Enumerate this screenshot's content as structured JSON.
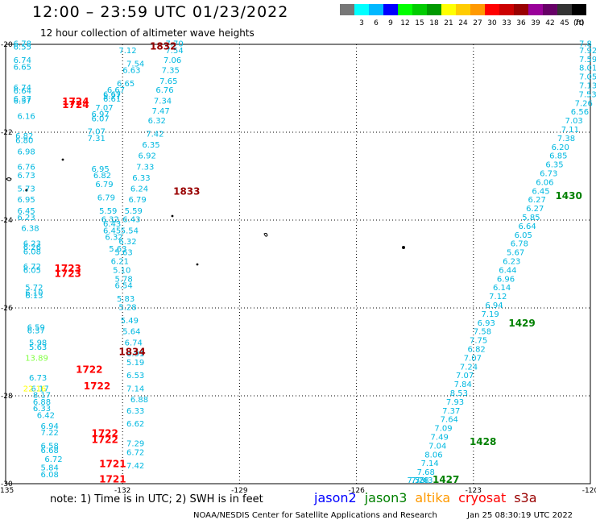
{
  "header": {
    "title": "12:00 – 23:59 UTC 01/23/2022",
    "subtitle": "12 hour collection of altimeter wave heights"
  },
  "legend": {
    "unit": "(ft)",
    "items": [
      {
        "color": "#777777",
        "label": ""
      },
      {
        "color": "#00ffff",
        "label": "3"
      },
      {
        "color": "#00b8ff",
        "label": "6"
      },
      {
        "color": "#0000ff",
        "label": "9"
      },
      {
        "color": "#00ff00",
        "label": "12"
      },
      {
        "color": "#00cc00",
        "label": "15"
      },
      {
        "color": "#009900",
        "label": "18"
      },
      {
        "color": "#ffff00",
        "label": "21"
      },
      {
        "color": "#ffcc00",
        "label": "24"
      },
      {
        "color": "#ff9900",
        "label": "27"
      },
      {
        "color": "#ff0000",
        "label": "30"
      },
      {
        "color": "#cc0000",
        "label": "33"
      },
      {
        "color": "#990000",
        "label": "36"
      },
      {
        "color": "#990099",
        "label": "39"
      },
      {
        "color": "#660066",
        "label": "42"
      },
      {
        "color": "#333333",
        "label": "45"
      },
      {
        "color": "#000000",
        "label": "70"
      }
    ]
  },
  "axes": {
    "lon_ticks": [
      "-135",
      "-132",
      "-129",
      "-126",
      "-123",
      "-120"
    ],
    "lat_ticks": [
      "-20",
      "-22",
      "-24",
      "-26",
      "-28",
      "-30"
    ],
    "lon_range": [
      -135,
      -120
    ],
    "lat_range": [
      -20,
      -30
    ]
  },
  "tracks": {
    "left": {
      "color": "#00b8e0",
      "points": [
        [
          -134.8,
          -20.05,
          "6.78"
        ],
        [
          -134.8,
          -20.12,
          "6.55"
        ],
        [
          -134.8,
          -20.42,
          "6.74"
        ],
        [
          -134.8,
          -20.58,
          "6.65"
        ],
        [
          -134.8,
          -21.05,
          "6.74"
        ],
        [
          -134.8,
          -21.12,
          "6.64"
        ],
        [
          -134.8,
          -21.3,
          "6.37"
        ],
        [
          -134.8,
          -21.35,
          "6.57"
        ],
        [
          -134.7,
          -21.7,
          "6.16"
        ],
        [
          -134.75,
          -22.15,
          "6.82"
        ],
        [
          -134.75,
          -22.25,
          "6.80"
        ],
        [
          -134.7,
          -22.5,
          "6.98"
        ],
        [
          -134.7,
          -22.85,
          "6.76"
        ],
        [
          -134.7,
          -23.05,
          "6.73"
        ],
        [
          -134.7,
          -23.35,
          "5.73"
        ],
        [
          -134.7,
          -23.6,
          "6.95"
        ],
        [
          -134.7,
          -23.85,
          "6.45"
        ],
        [
          -134.7,
          -24.0,
          "6.23"
        ],
        [
          -134.6,
          -24.25,
          "6.38"
        ],
        [
          -134.55,
          -24.6,
          "6.23"
        ],
        [
          -134.55,
          -24.68,
          "6.26"
        ],
        [
          -134.55,
          -24.78,
          "6.08"
        ],
        [
          -134.55,
          -25.12,
          "6.72"
        ],
        [
          -134.55,
          -25.2,
          "6.05"
        ],
        [
          -134.5,
          -25.6,
          "5.72"
        ],
        [
          -134.5,
          -25.72,
          "6.10"
        ],
        [
          -134.5,
          -25.78,
          "6.13"
        ],
        [
          -134.45,
          -26.5,
          "6.59"
        ],
        [
          -134.45,
          -26.58,
          "6.37"
        ],
        [
          -134.4,
          -26.85,
          "5.98"
        ],
        [
          -134.4,
          -26.95,
          "5.63"
        ],
        [
          -134.4,
          -27.65,
          "6.73"
        ],
        [
          -134.35,
          -27.9,
          "6.17"
        ],
        [
          -134.3,
          -28.2,
          "6.88"
        ],
        [
          -134.3,
          -28.35,
          "6.33"
        ],
        [
          -134.2,
          -28.5,
          "6.42"
        ],
        [
          -134.1,
          -28.75,
          "6.94"
        ],
        [
          -134.1,
          -28.9,
          "7.22"
        ],
        [
          -134.1,
          -29.2,
          "6.58"
        ],
        [
          -134.1,
          -29.3,
          "6.68"
        ],
        [
          -134.0,
          -29.5,
          "6.72"
        ],
        [
          -134.1,
          -29.7,
          "5.84"
        ],
        [
          -134.1,
          -29.85,
          "6.08"
        ]
      ]
    },
    "middle": {
      "color": "#00b8e0",
      "points": [
        [
          -132.1,
          -20.2,
          "7.12"
        ],
        [
          -131.9,
          -20.5,
          "7.54"
        ],
        [
          -132.0,
          -20.65,
          "6.63"
        ],
        [
          -132.15,
          -20.95,
          "6.65"
        ],
        [
          -132.4,
          -21.1,
          "6.67"
        ],
        [
          -132.5,
          -21.2,
          "6.67"
        ],
        [
          -132.5,
          -21.25,
          "5.77"
        ],
        [
          -132.5,
          -21.3,
          "6.61"
        ],
        [
          -132.7,
          -21.5,
          "7.07"
        ],
        [
          -132.8,
          -21.65,
          "6.97"
        ],
        [
          -132.8,
          -21.75,
          "6.07"
        ],
        [
          -132.9,
          -22.05,
          "7.07"
        ],
        [
          -132.9,
          -22.2,
          "7.31"
        ],
        [
          -132.8,
          -22.9,
          "6.95"
        ],
        [
          -132.75,
          -23.05,
          "6.82"
        ],
        [
          -132.7,
          -23.25,
          "6.79"
        ],
        [
          -132.65,
          -23.55,
          "6.79"
        ],
        [
          -132.6,
          -23.85,
          "5.59"
        ],
        [
          -132.55,
          -24.05,
          "6.32"
        ],
        [
          -132.5,
          -24.15,
          "6.43"
        ],
        [
          -132.5,
          -24.3,
          "6.45"
        ],
        [
          -132.45,
          -24.45,
          "6.32"
        ],
        [
          -132.35,
          -24.72,
          "5.63"
        ],
        [
          -132.3,
          -25.0,
          "6.21"
        ],
        [
          -132.25,
          -25.2,
          "5.10"
        ],
        [
          -132.2,
          -25.4,
          "5.78"
        ],
        [
          -132.2,
          -25.55,
          "6.54"
        ],
        [
          -132.15,
          -25.85,
          "5.83"
        ],
        [
          -132.1,
          -26.05,
          "5.28"
        ],
        [
          -132.05,
          -26.35,
          "5.49"
        ],
        [
          -132.0,
          -26.6,
          "5.64"
        ],
        [
          -131.95,
          -26.85,
          "6.74"
        ],
        [
          -131.9,
          -27.1,
          "6.91"
        ],
        [
          -131.9,
          -27.3,
          "5.19"
        ],
        [
          -131.9,
          -27.6,
          "6.53"
        ],
        [
          -131.9,
          -27.9,
          "7.14"
        ],
        [
          -131.8,
          -28.15,
          "6.88"
        ],
        [
          -131.9,
          -28.4,
          "6.33"
        ],
        [
          -131.9,
          -28.7,
          "6.62"
        ],
        [
          -131.9,
          -29.15,
          "7.29"
        ],
        [
          -131.9,
          -29.35,
          "6.72"
        ],
        [
          -131.9,
          -29.65,
          "7.42"
        ]
      ]
    },
    "upper": {
      "color": "#00b8e0",
      "points": [
        [
          -130.9,
          -20.05,
          "7.70"
        ],
        [
          -130.9,
          -20.2,
          "7.54"
        ],
        [
          -130.95,
          -20.42,
          "7.06"
        ],
        [
          -131.0,
          -20.65,
          "7.35"
        ],
        [
          -131.05,
          -20.9,
          "7.65"
        ],
        [
          -131.15,
          -21.1,
          "6.76"
        ],
        [
          -131.2,
          -21.35,
          "7.34"
        ],
        [
          -131.25,
          -21.58,
          "7.47"
        ],
        [
          -131.35,
          -21.8,
          "6.32"
        ],
        [
          -131.4,
          -22.1,
          "7.42"
        ],
        [
          -131.5,
          -22.35,
          "6.35"
        ],
        [
          -131.6,
          -22.6,
          "6.92"
        ],
        [
          -131.65,
          -22.85,
          "7.33"
        ],
        [
          -131.75,
          -23.1,
          "6.33"
        ],
        [
          -131.8,
          -23.35,
          "6.24"
        ],
        [
          -131.85,
          -23.6,
          "6.79"
        ],
        [
          -131.95,
          -23.85,
          "5.59"
        ],
        [
          -132.0,
          -24.05,
          "6.43"
        ],
        [
          -132.05,
          -24.3,
          "5.54"
        ],
        [
          -132.1,
          -24.55,
          "6.32"
        ],
        [
          -132.2,
          -24.8,
          "5.63"
        ]
      ]
    },
    "right": {
      "color": "#00b8e0",
      "points": [
        [
          -120.0,
          -20.05,
          "7.8"
        ],
        [
          -120.0,
          -20.2,
          "7.92"
        ],
        [
          -120.05,
          -20.4,
          "7.59"
        ],
        [
          -120.1,
          -20.6,
          "8.01"
        ],
        [
          -120.15,
          -20.8,
          "7.05"
        ],
        [
          -120.2,
          -21.0,
          "7.13"
        ],
        [
          -120.3,
          -21.2,
          "7.53"
        ],
        [
          -120.4,
          -21.4,
          "7.26"
        ],
        [
          -120.5,
          -21.6,
          "6.56"
        ],
        [
          -120.65,
          -21.8,
          "7.03"
        ],
        [
          -120.75,
          -22.0,
          "7.11"
        ],
        [
          -120.85,
          -22.2,
          "7.38"
        ],
        [
          -121.0,
          -22.4,
          "6.20"
        ],
        [
          -121.05,
          -22.6,
          "6.85"
        ],
        [
          -121.15,
          -22.8,
          "6.35"
        ],
        [
          -121.3,
          -23.0,
          "6.73"
        ],
        [
          -121.4,
          -23.2,
          "6.06"
        ],
        [
          -121.5,
          -23.4,
          "6.45"
        ],
        [
          -121.6,
          -23.6,
          "6.27"
        ],
        [
          -121.65,
          -23.8,
          "6.27"
        ],
        [
          -121.75,
          -24.0,
          "5.85"
        ],
        [
          -121.85,
          -24.2,
          "6.64"
        ],
        [
          -121.95,
          -24.4,
          "6.05"
        ],
        [
          -122.05,
          -24.6,
          "6.78"
        ],
        [
          -122.15,
          -24.8,
          "5.67"
        ],
        [
          -122.25,
          -25.0,
          "6.23"
        ],
        [
          -122.35,
          -25.2,
          "6.44"
        ],
        [
          -122.4,
          -25.4,
          "6.96"
        ],
        [
          -122.5,
          -25.6,
          "6.14"
        ],
        [
          -122.6,
          -25.8,
          "7.12"
        ],
        [
          -122.7,
          -26.0,
          "6.94"
        ],
        [
          -122.8,
          -26.2,
          "7.19"
        ],
        [
          -122.9,
          -26.4,
          "6.93"
        ],
        [
          -123.0,
          -26.6,
          "7.58"
        ],
        [
          -123.1,
          -26.8,
          "7.75"
        ],
        [
          -123.15,
          -27.0,
          "6.82"
        ],
        [
          -123.25,
          -27.2,
          "7.07"
        ],
        [
          -123.35,
          -27.4,
          "7.24"
        ],
        [
          -123.45,
          -27.6,
          "7.07"
        ],
        [
          -123.5,
          -27.8,
          "7.84"
        ],
        [
          -123.6,
          -28.0,
          "8.53"
        ],
        [
          -123.7,
          -28.2,
          "7.93"
        ],
        [
          -123.8,
          -28.4,
          "7.37"
        ],
        [
          -123.85,
          -28.6,
          "7.64"
        ],
        [
          -124.0,
          -28.8,
          "7.09"
        ],
        [
          -124.1,
          -29.0,
          "7.49"
        ],
        [
          -124.15,
          -29.2,
          "7.04"
        ],
        [
          -124.25,
          -29.4,
          "8.06"
        ],
        [
          -124.35,
          -29.6,
          "7.14"
        ],
        [
          -124.45,
          -29.8,
          "7.68"
        ],
        [
          -124.5,
          -30.0,
          "7.43"
        ],
        [
          -124.6,
          -30.2,
          "7.28"
        ],
        [
          -124.7,
          -30.35,
          "7.58"
        ]
      ]
    },
    "highlight_points": [
      [
        -134.5,
        -27.2,
        "13.89",
        "#80ff40"
      ],
      [
        -134.55,
        -27.9,
        "22.16",
        "#ffff00"
      ],
      [
        -134.3,
        -28.05,
        "8.17",
        "#00b8e0"
      ]
    ]
  },
  "pass_labels": [
    [
      -131.3,
      -20.05,
      "1832",
      "#990000"
    ],
    [
      -133.55,
      -21.3,
      "1724",
      "#ff0000"
    ],
    [
      -133.55,
      -21.38,
      "1724",
      "#ff0000"
    ],
    [
      -130.7,
      -23.35,
      "1833",
      "#990000"
    ],
    [
      -133.75,
      -25.1,
      "1723",
      "#ff0000"
    ],
    [
      -133.75,
      -25.22,
      "1723",
      "#ff0000"
    ],
    [
      -132.1,
      -27.0,
      "1834",
      "#990000"
    ],
    [
      -133.2,
      -27.4,
      "1722",
      "#ff0000"
    ],
    [
      -133.0,
      -27.78,
      "1722",
      "#ff0000"
    ],
    [
      -132.8,
      -28.85,
      "1722",
      "#ff0000"
    ],
    [
      -132.8,
      -29.0,
      "1722",
      "#ff0000"
    ],
    [
      -132.6,
      -29.55,
      "1721",
      "#ff0000"
    ],
    [
      -132.6,
      -29.9,
      "1721",
      "#ff0000"
    ],
    [
      -120.9,
      -23.45,
      "1430",
      "#008000"
    ],
    [
      -122.1,
      -26.35,
      "1429",
      "#008000"
    ],
    [
      -123.1,
      -29.05,
      "1428",
      "#008000"
    ],
    [
      -124.05,
      -30.3,
      "1427",
      "#008000"
    ]
  ],
  "footer": {
    "note": "note:  1) Time is in UTC; 2) SWH is in feet",
    "satellites": [
      {
        "name": "jason2",
        "color": "#0000ff"
      },
      {
        "name": "jason3",
        "color": "#008000"
      },
      {
        "name": "altika",
        "color": "#ff9900"
      },
      {
        "name": "cryosat",
        "color": "#ff0000"
      },
      {
        "name": "s3a",
        "color": "#990000"
      }
    ],
    "credit": "NOAA/NESDIS Center for Satellite Applications and Research",
    "timestamp": "Jan 25 08:30:19 UTC 2022"
  }
}
